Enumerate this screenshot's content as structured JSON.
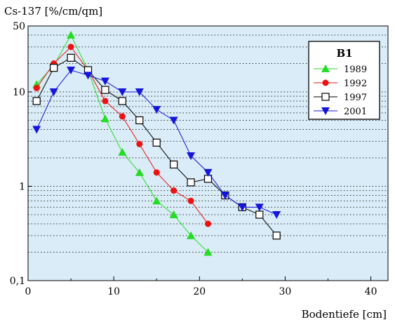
{
  "chart_data": {
    "type": "line",
    "title": "",
    "ylabel": "Cs-137 [%/cm/qm]",
    "xlabel": "Bodentiefe [cm]",
    "xlim": [
      0,
      42
    ],
    "ylim": [
      0.1,
      50
    ],
    "y_scale": "log",
    "x_ticks": [
      0,
      10,
      20,
      30,
      40
    ],
    "x_tick_labels": [
      "0",
      "10",
      "20",
      "30",
      "40"
    ],
    "y_ticks": [
      0.1,
      1,
      10,
      50
    ],
    "y_tick_labels": [
      "0,1",
      "1",
      "10",
      "50"
    ],
    "grid": "dotted horizontal",
    "legend": {
      "title": "B1",
      "position": "top-right"
    },
    "plot_background": "#d9ecf7",
    "series": [
      {
        "name": "1989",
        "color": "#22dd22",
        "marker": "triangle-up",
        "x": [
          1,
          3,
          5,
          7,
          9,
          11,
          13,
          15,
          17,
          19,
          21
        ],
        "y": [
          12,
          19,
          40,
          17,
          5.2,
          2.3,
          1.4,
          0.7,
          0.5,
          0.3,
          0.2
        ]
      },
      {
        "name": "1992",
        "color": "#ee1111",
        "marker": "circle",
        "x": [
          1,
          3,
          5,
          7,
          9,
          11,
          13,
          15,
          17,
          19,
          21
        ],
        "y": [
          11,
          20,
          30,
          17,
          8,
          5.5,
          2.8,
          1.4,
          0.9,
          0.7,
          0.4
        ]
      },
      {
        "name": "1997",
        "color": "#000000",
        "marker": "square-open",
        "x": [
          1,
          3,
          5,
          7,
          9,
          11,
          13,
          15,
          17,
          19,
          21,
          23,
          25,
          27,
          29
        ],
        "y": [
          8,
          18,
          23,
          17,
          10.5,
          8,
          5,
          2.9,
          1.7,
          1.1,
          1.2,
          0.8,
          0.6,
          0.5,
          0.3
        ]
      },
      {
        "name": "2001",
        "color": "#1515dd",
        "marker": "triangle-down",
        "x": [
          1,
          3,
          5,
          7,
          9,
          11,
          13,
          15,
          17,
          19,
          21,
          23,
          25,
          27,
          29
        ],
        "y": [
          4,
          10,
          17,
          15,
          13,
          10,
          10,
          6.5,
          5,
          2.1,
          1.4,
          0.8,
          0.6,
          0.6,
          0.5
        ]
      }
    ]
  }
}
